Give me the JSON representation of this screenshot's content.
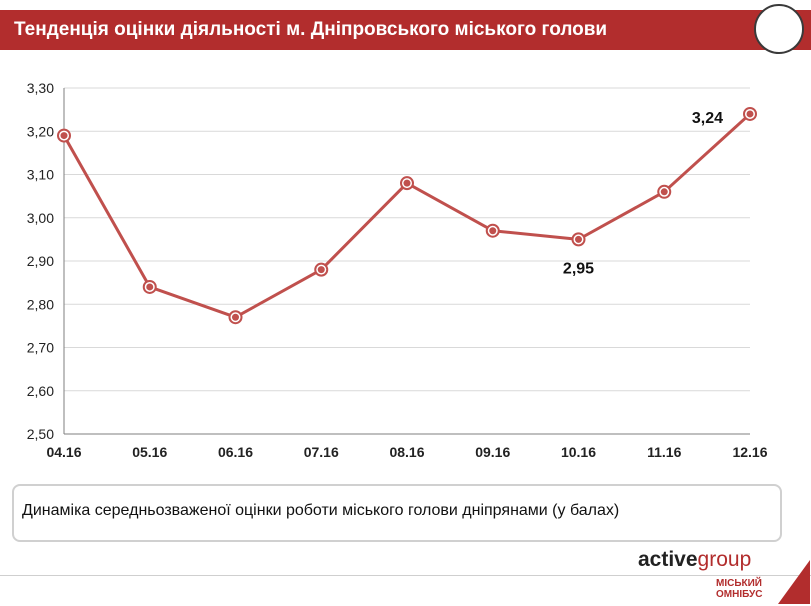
{
  "header": {
    "title": "Тенденція оцінки діяльності  м. Дніпровського міського голови"
  },
  "chart_data": {
    "type": "line",
    "categories": [
      "04.16",
      "05.16",
      "06.16",
      "07.16",
      "08.16",
      "09.16",
      "10.16",
      "11.16",
      "12.16"
    ],
    "series": [
      {
        "values": [
          3.19,
          2.84,
          2.77,
          2.88,
          3.08,
          2.97,
          2.95,
          3.06,
          3.24
        ]
      }
    ],
    "ylim": [
      2.5,
      3.3
    ],
    "yticks": [
      "2,50",
      "2,60",
      "2,70",
      "2,80",
      "2,90",
      "3,00",
      "3,10",
      "3,20",
      "3,30"
    ],
    "grid": true,
    "data_labels": [
      {
        "index": 6,
        "text": "2,95",
        "position": "below"
      },
      {
        "index": 8,
        "text": "3,24",
        "position": "left"
      }
    ],
    "color": "#c0504d"
  },
  "caption": {
    "text": "Динаміка середньозваженої оцінки роботи міського голови дніпрянами (у балах)"
  },
  "footer": {
    "brand_part1": "active",
    "brand_part2": "group",
    "logo_line1": "МІСЬКИЙ",
    "logo_line2": "ОМНІБУС"
  }
}
